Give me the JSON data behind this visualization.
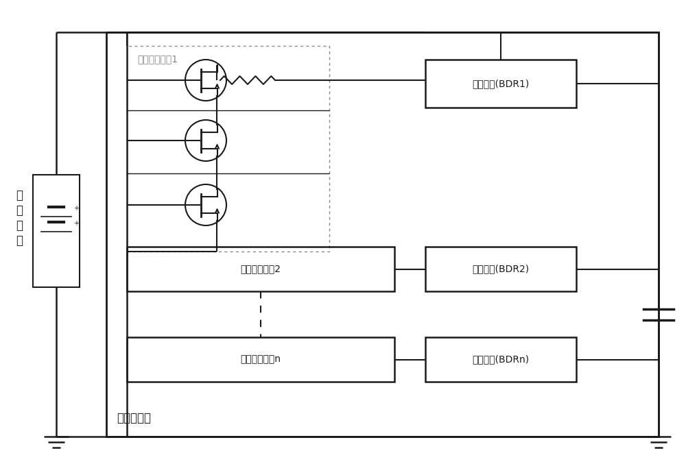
{
  "bg_color": "#ffffff",
  "line_color": "#1a1a1a",
  "gray_color": "#888888",
  "title": "电源控制器",
  "battery_label_chars": [
    "蓄",
    "电",
    "池",
    "组"
  ],
  "sw1_label": "放电开关电路1",
  "sw2_label": "放电开关电路2",
  "swn_label": "放电开关电路n",
  "bdr1_label": "放电电路(BDR1)",
  "bdr2_label": "放电电路(BDR2)",
  "bdrn_label": "放电电路(BDRn)",
  "font_size": 10,
  "font_size_title": 12
}
